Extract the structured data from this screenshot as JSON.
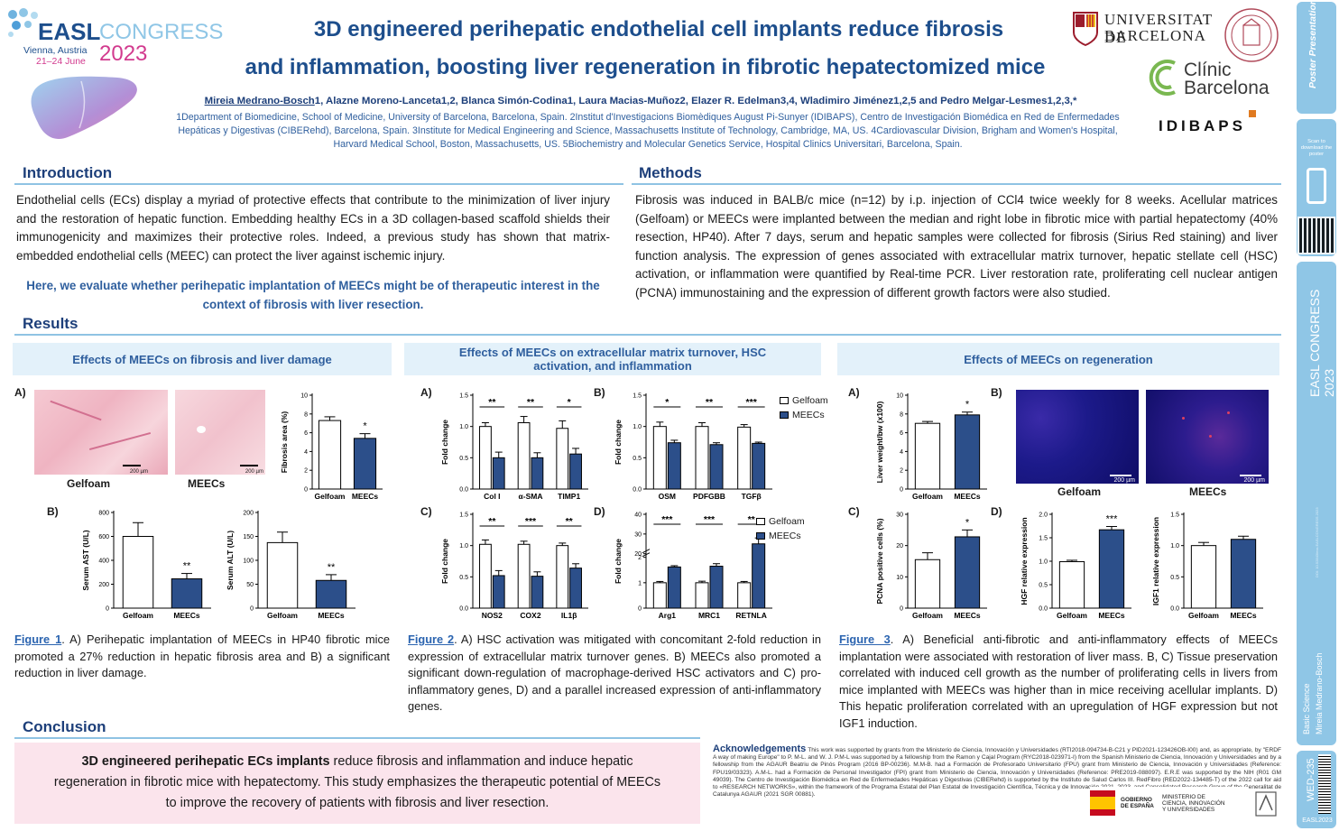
{
  "logo": {
    "easl": "EASL",
    "congress": "CONGRESS",
    "place": "Vienna, Austria",
    "dates": "21–24 June",
    "year": "2023"
  },
  "header": {
    "title_line1": "3D engineered perihepatic endothelial cell implants reduce fibrosis",
    "title_line2": "and inflammation, boosting liver regeneration in fibrotic hepatectomized mice",
    "authors_first": "Mireia Medrano-Bosch",
    "authors_rest": "1, Alazne Moreno-Lanceta1,2, Blanca Simón-Codina1, Laura Macias-Muñoz2, Elazer R. Edelman3,4, Wladimiro Jiménez1,2,5 and Pedro Melgar-Lesmes1,2,3,*",
    "affiliations": "1Department of Biomedicine, School of Medicine, University of Barcelona, Barcelona, Spain. 2Institut d'Investigacions Biomèdiques August Pi-Sunyer (IDIBAPS), Centro de Investigación Biomédica en Red de Enfermedades Hepáticas y Digestivas (CIBERehd), Barcelona, Spain. 3Institute for Medical Engineering and Science, Massachusetts Institute of Technology, Cambridge, MA, US. 4Cardiovascular Division, Brigham and Women's Hospital, Harvard Medical School, Boston, Massachusetts, US. 5Biochemistry and Molecular Genetics Service, Hospital Clinics Universitari, Barcelona, Spain."
  },
  "institutions": {
    "ub_line1": "UNIVERSITAT DE",
    "ub_line2": "BARCELONA",
    "clinic_line1": "Clínic",
    "clinic_line2": "Barcelona",
    "idibaps": "IDIBAPS"
  },
  "sections": {
    "introduction": "Introduction",
    "methods": "Methods",
    "results": "Results",
    "conclusion": "Conclusion"
  },
  "intro": {
    "text": "Endothelial cells (ECs) display a myriad of protective effects that contribute to the minimization of liver injury and the restoration of hepatic function. Embedding healthy ECs in a 3D collagen-based scaffold shields their immunogenicity and maximizes their protective roles. Indeed, a previous study has shown that matrix-embedded endothelial cells (MEEC) can protect the liver against ischemic injury.",
    "aim": "Here, we evaluate whether perihepatic implantation of MEECs might be of therapeutic interest in the context of fibrosis with liver resection."
  },
  "methods": {
    "text": "Fibrosis was induced in BALB/c mice (n=12) by i.p. injection of CCl4 twice weekly for 8 weeks. Acellular matrices (Gelfoam) or MEECs were implanted between the median and right lobe in fibrotic mice with partial hepatectomy (40% resection, HP40). After 7 days, serum and hepatic samples were collected for fibrosis (Sirius Red staining) and liver function analysis. The expression of genes associated with extracellular matrix turnover, hepatic stellate cell (HSC) activation, or inflammation were quantified by Real-time PCR. Liver restoration rate, proliferating cell nuclear antigen (PCNA) immunostaining and the expression of different growth factors were also studied."
  },
  "panels": {
    "p1": "Effects of MEECs on fibrosis and liver damage",
    "p2": "Effects of MEECs on extracellular matrix turnover, HSC activation, and inflammation",
    "p3": "Effects of MEECs on regeneration"
  },
  "fig_labels": {
    "A": "A)",
    "B": "B)",
    "C": "C)",
    "D": "D)"
  },
  "groups": {
    "gelfoam": "Gelfoam",
    "meecs": "MEECs",
    "scale": "200 µm"
  },
  "colors": {
    "gelfoam": "#ffffff",
    "meecs": "#2c4f8a",
    "header": "#1d4e8c",
    "accent": "#2f5f9e"
  },
  "chart_data": [
    {
      "id": "f1b",
      "type": "bar",
      "categories": [
        "Gelfoam",
        "MEECs"
      ],
      "values": [
        7.3,
        5.4
      ],
      "errors": [
        0.4,
        0.5
      ],
      "ylabel": "Fibrosis area (%)",
      "ylim": [
        0,
        10
      ],
      "yticks": [
        0,
        2,
        4,
        6,
        8,
        10
      ],
      "sig": "*"
    },
    {
      "id": "f1c",
      "type": "bar",
      "categories": [
        "Gelfoam",
        "MEECs"
      ],
      "values": [
        600,
        245
      ],
      "errors": [
        115,
        45
      ],
      "ylabel": "Serum AST  (U/L)",
      "ylim": [
        0,
        800
      ],
      "yticks": [
        0,
        200,
        400,
        600,
        800
      ],
      "sig": "**"
    },
    {
      "id": "f1d",
      "type": "bar",
      "categories": [
        "Gelfoam",
        "MEECs"
      ],
      "values": [
        137,
        58
      ],
      "errors": [
        22,
        12
      ],
      "ylabel": "Serum ALT (U/L)",
      "ylim": [
        0,
        200
      ],
      "yticks": [
        0,
        50,
        100,
        150,
        200
      ],
      "sig": "**"
    },
    {
      "id": "f2a",
      "type": "bar",
      "categories": [
        "Col I",
        "α-SMA",
        "TIMP1"
      ],
      "series": [
        {
          "name": "Gelfoam",
          "values": [
            1.0,
            1.06,
            0.97
          ]
        },
        {
          "name": "MEECs",
          "values": [
            0.5,
            0.5,
            0.56
          ]
        }
      ],
      "errors": [
        [
          0.06,
          0.1,
          0.12
        ],
        [
          0.09,
          0.08,
          0.09
        ]
      ],
      "ylabel": "Fold change",
      "ylim": [
        0,
        1.5
      ],
      "yticks": [
        0.0,
        0.5,
        1.0,
        1.5
      ],
      "sigs": [
        "**",
        "**",
        "*"
      ]
    },
    {
      "id": "f2b",
      "type": "bar",
      "categories": [
        "OSM",
        "PDFGBB",
        "TGFβ"
      ],
      "series": [
        {
          "name": "Gelfoam",
          "values": [
            1.0,
            1.0,
            0.99
          ]
        },
        {
          "name": "MEECs",
          "values": [
            0.74,
            0.71,
            0.73
          ]
        }
      ],
      "errors": [
        [
          0.07,
          0.06,
          0.04
        ],
        [
          0.04,
          0.03,
          0.02
        ]
      ],
      "ylabel": "Fold change",
      "ylim": [
        0,
        1.5
      ],
      "yticks": [
        0.0,
        0.5,
        1.0,
        1.5
      ],
      "sigs": [
        "*",
        "**",
        "***"
      ]
    },
    {
      "id": "f2c",
      "type": "bar",
      "categories": [
        "NOS2",
        "COX2",
        "IL1β"
      ],
      "series": [
        {
          "name": "Gelfoam",
          "values": [
            1.02,
            1.02,
            1.0
          ]
        },
        {
          "name": "MEECs",
          "values": [
            0.52,
            0.51,
            0.64
          ]
        }
      ],
      "errors": [
        [
          0.07,
          0.05,
          0.04
        ],
        [
          0.08,
          0.07,
          0.07
        ]
      ],
      "ylabel": "Fold change",
      "ylim": [
        0,
        1.5
      ],
      "yticks": [
        0.0,
        0.5,
        1.0,
        1.5
      ],
      "sigs": [
        "**",
        "***",
        "**"
      ]
    },
    {
      "id": "f2d",
      "type": "bar",
      "categories": [
        "Arg1",
        "MRC1",
        "RETNLA"
      ],
      "series": [
        {
          "name": "Gelfoam",
          "values": [
            1.0,
            1.0,
            1.0
          ]
        },
        {
          "name": "MEECs",
          "values": [
            1.62,
            1.65,
            25
          ]
        }
      ],
      "errors": [
        [
          0.05,
          0.06,
          0.05
        ],
        [
          0.05,
          0.1,
          3
        ]
      ],
      "ylabel": "Fold change",
      "yticks": [
        0,
        1,
        2,
        20,
        30,
        40
      ],
      "axis_break": [
        2,
        20
      ],
      "sigs": [
        "***",
        "***",
        "**"
      ]
    },
    {
      "id": "f3a",
      "type": "bar",
      "categories": [
        "Gelfoam",
        "MEECs"
      ],
      "values": [
        7.0,
        7.9
      ],
      "errors": [
        0.2,
        0.3
      ],
      "ylabel": "Liver weight/bw (x100)",
      "ylim": [
        0,
        10
      ],
      "yticks": [
        0,
        2,
        4,
        6,
        8,
        10
      ],
      "sig": "*"
    },
    {
      "id": "f3c",
      "type": "bar",
      "categories": [
        "Gelfoam",
        "MEECs"
      ],
      "values": [
        15.5,
        22.8
      ],
      "errors": [
        2.2,
        2.2
      ],
      "ylabel": "PCNA positive cells (%)",
      "ylim": [
        0,
        30
      ],
      "yticks": [
        0,
        10,
        20,
        30
      ],
      "sig": "*"
    },
    {
      "id": "f3d",
      "type": "bar",
      "categories": [
        "Gelfoam",
        "MEECs"
      ],
      "values": [
        0.99,
        1.67
      ],
      "errors": [
        0.03,
        0.07
      ],
      "ylabel": "HGF relative expression",
      "ylim": [
        0,
        2.0
      ],
      "yticks": [
        0.0,
        0.5,
        1.0,
        1.5,
        2.0
      ],
      "sig": "***"
    },
    {
      "id": "f3e",
      "type": "bar",
      "categories": [
        "Gelfoam",
        "MEECs"
      ],
      "values": [
        1.0,
        1.1
      ],
      "errors": [
        0.05,
        0.05
      ],
      "ylabel": "IGF1 relative expression",
      "ylim": [
        0,
        1.5
      ],
      "yticks": [
        0.0,
        0.5,
        1.0,
        1.5
      ],
      "sig": ""
    }
  ],
  "captions": {
    "fig1_label": "Figure 1",
    "fig1": ". A) Perihepatic implantation of MEECs in HP40 fibrotic mice promoted a 27% reduction in hepatic fibrosis area and B) a significant reduction in liver damage.",
    "fig2_label": "Figure 2",
    "fig2": ". A) HSC activation was mitigated with concomitant 2-fold reduction in expression of extracellular matrix turnover genes. B) MEECs also promoted a significant down-regulation of macrophage-derived HSC activators and C) pro-inflammatory genes, D) and a parallel increased expression of anti-inflammatory genes.",
    "fig3_label": "Figure 3",
    "fig3": ". A) Beneficial anti-fibrotic and anti-inflammatory effects of MEECs implantation were associated with restoration of liver mass. B, C) Tissue preservation correlated with induced cell growth as the number of proliferating cells in livers from mice implanted with MEECs was higher than in mice receiving acellular implants. D) This hepatic proliferation correlated with an upregulation of HGF expression but not IGF1 induction."
  },
  "conclusion": {
    "bold": "3D engineered perihepatic ECs implants",
    "text": " reduce fibrosis and inflammation and induce hepatic regeneration in fibrotic mice with hepatectomy. This study emphasizes the therapeutic potential of MEECs to improve the recovery of patients with fibrosis and liver resection."
  },
  "ack": {
    "title": "Acknowledgements",
    "text": "This work was supported by grants from the Ministerio de Ciencia, Innovación y Universidades (RTI2018-094734-B-C21 y PID2021-123426OB-I00) and, as appropriate, by \"ERDF A way of making Europe\" to P. M-L. and W. J. P.M-L was supported by a fellowship from the Ramon y Cajal Program (RYC2018-023971-I) from the Spanish Ministerio de Ciencia, Innovación y Universidades and by a fellowship from the AGAUR Beatriu de Pinós Program (2016 BP-00236). M.M-B. had a Formación de Profesorado Universitario (FPU) grant from Ministerio de Ciencia, Innovación y Universidades (Reference: FPU19/03323). A.M-L. had a Formación de Personal Investigador (FPI) grant from Ministerio de Ciencia, Innovación y Universidades (Reference: PRE2019-088097). E.R.E was supported by the NIH (R01 GM 49039). The Centro de Investigación Biomédica en Red de Enfermedades Hepáticas y Digestivas (CIBERehd) is supported by the Instituto de Salud Carlos III. RedFibro (RED2022-134485-T) of the 2022 call for aid to «RESEARCH NETWORKS», within the framework of the Programa Estatal del Plan Estatal de Investigación Científica, Técnica y de Innovación 2021–2023, and Consolidated Research Group of the Generalitat de Catalunya AGAUR (2021 SGR 00881).",
    "gov1": "GOBIERNO DE ESPAÑA",
    "gov2": "MINISTERIO DE CIENCIA, INNOVACIÓN Y UNIVERSIDADES"
  },
  "sidebar": {
    "poster": "Poster Presentations",
    "scan": "Scan to download the poster",
    "easl": "EASL CONGRESS 2023",
    "small": "DOI: 10.52843/ess.EASLCONGRESS.2023",
    "category": "Basic Science",
    "author": "Mireia Medrano-Bosch",
    "code": "WED-235",
    "footer": "EASL2023"
  }
}
